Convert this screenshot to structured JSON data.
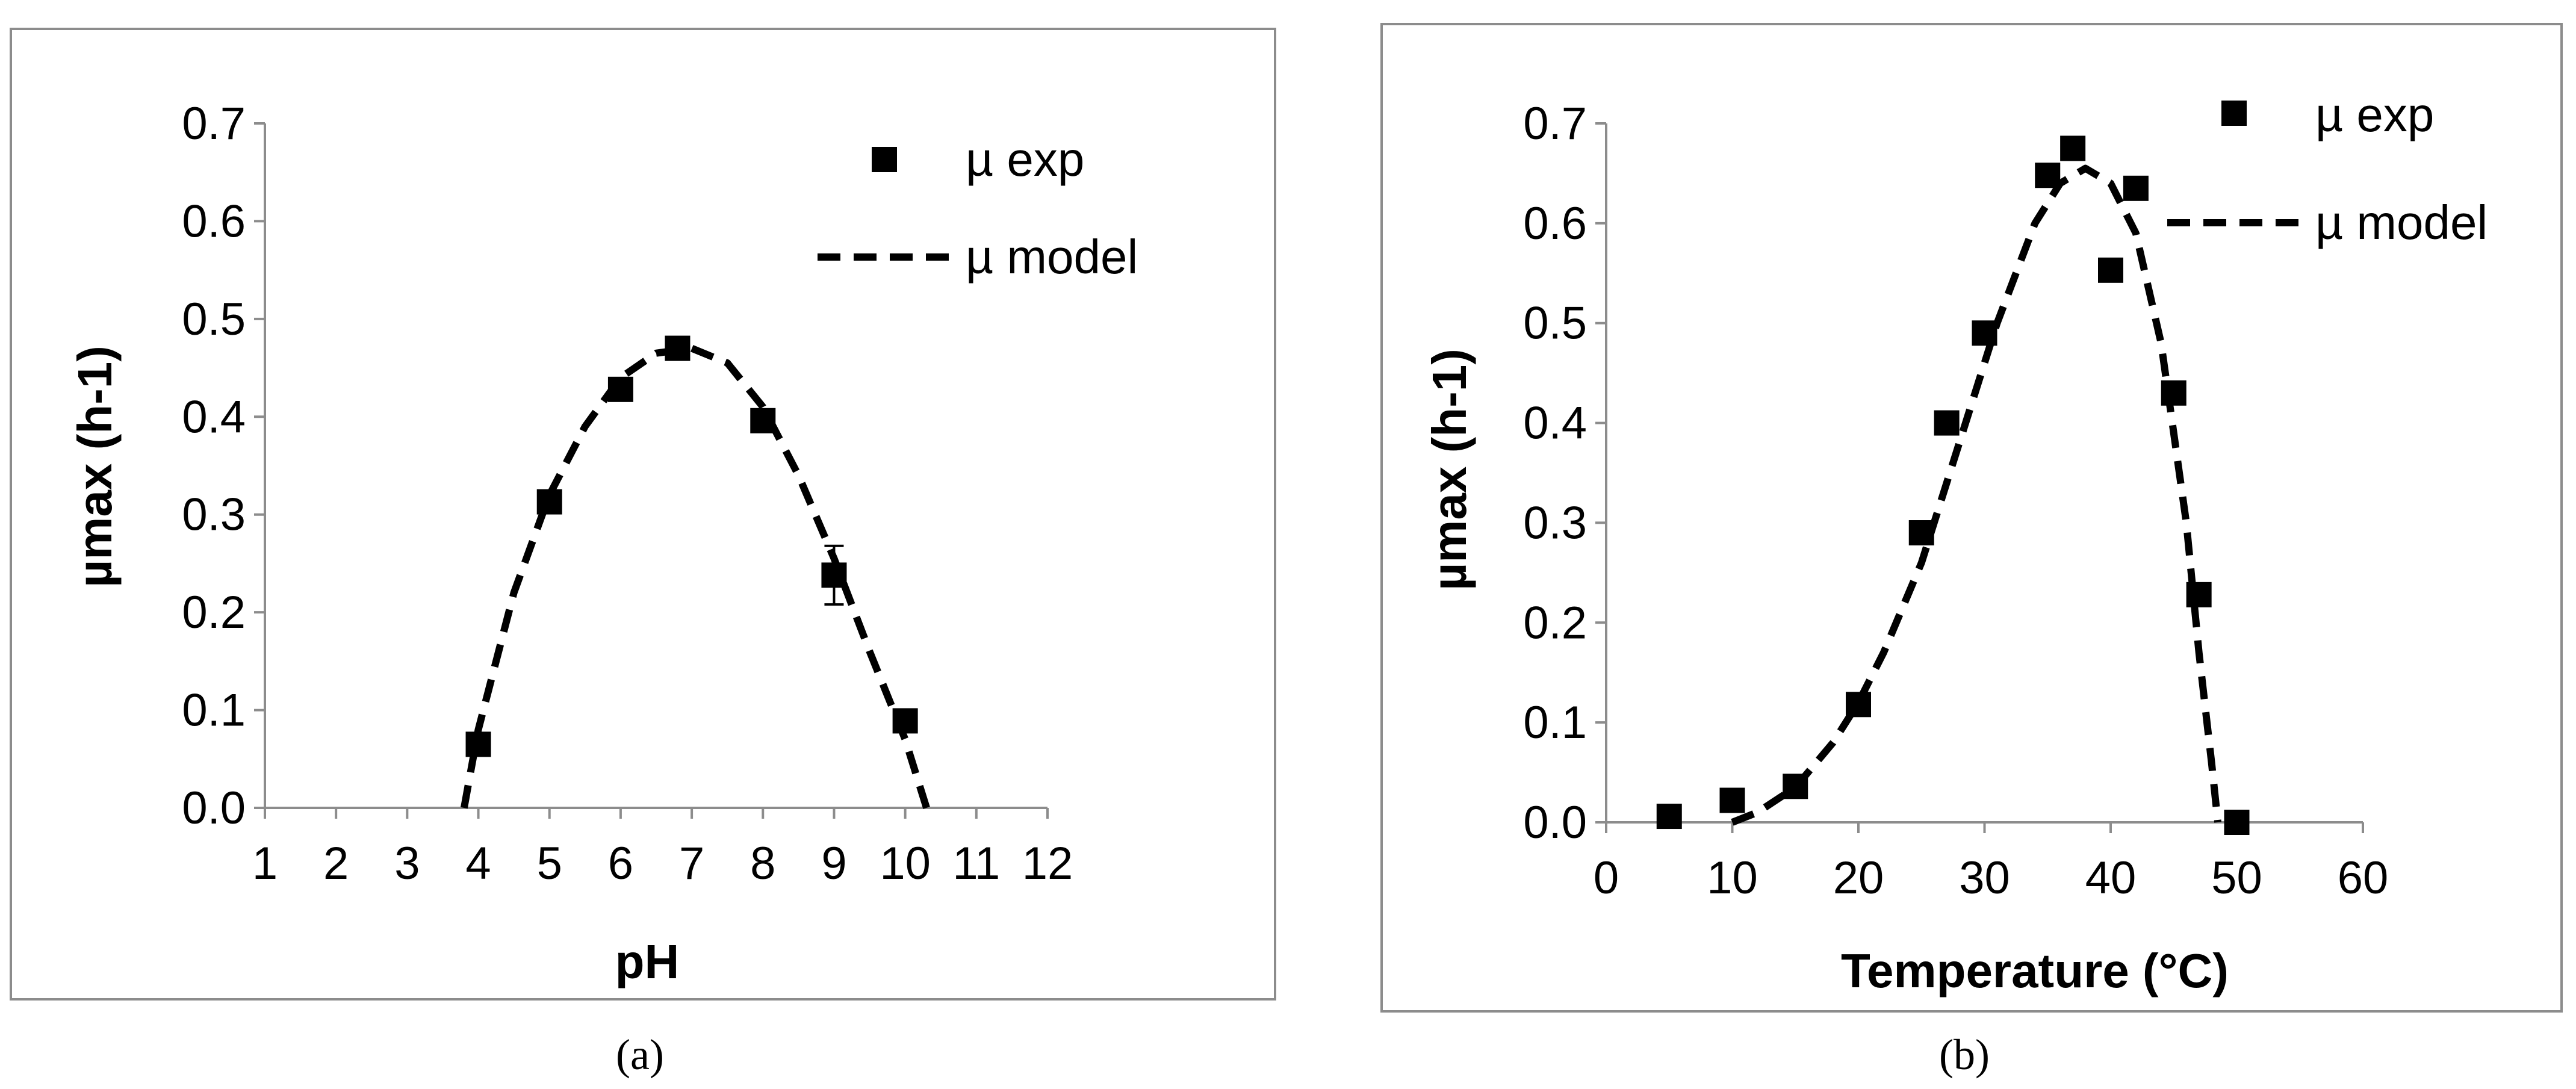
{
  "chart_data": [
    {
      "type": "scatter",
      "caption": "(a)",
      "xlabel": "pH",
      "ylabel": "µmax (h-1)",
      "xlim": [
        1,
        12
      ],
      "ylim": [
        0,
        0.7
      ],
      "x_ticks": [
        "1",
        "2",
        "3",
        "4",
        "5",
        "6",
        "7",
        "8",
        "9",
        "10",
        "11",
        "12"
      ],
      "y_ticks": [
        "0.0",
        "0.1",
        "0.2",
        "0.3",
        "0.4",
        "0.5",
        "0.6",
        "0.7"
      ],
      "grid": false,
      "legend": "top-right",
      "series": [
        {
          "name": "µ exp",
          "kind": "markers",
          "marker": "square",
          "points": [
            {
              "x": 4,
              "y": 0.065
            },
            {
              "x": 5,
              "y": 0.313,
              "err": 0.01
            },
            {
              "x": 6,
              "y": 0.428,
              "err": 0.008
            },
            {
              "x": 6.8,
              "y": 0.47
            },
            {
              "x": 8,
              "y": 0.396
            },
            {
              "x": 9,
              "y": 0.238,
              "err": 0.03
            },
            {
              "x": 10,
              "y": 0.089
            }
          ]
        },
        {
          "name": "µ model",
          "kind": "dashed-line",
          "points": [
            {
              "x": 3.8,
              "y": 0.0
            },
            {
              "x": 4.0,
              "y": 0.08
            },
            {
              "x": 4.5,
              "y": 0.22
            },
            {
              "x": 5.0,
              "y": 0.32
            },
            {
              "x": 5.5,
              "y": 0.39
            },
            {
              "x": 6.0,
              "y": 0.44
            },
            {
              "x": 6.5,
              "y": 0.465
            },
            {
              "x": 7.0,
              "y": 0.47
            },
            {
              "x": 7.5,
              "y": 0.455
            },
            {
              "x": 8.0,
              "y": 0.41
            },
            {
              "x": 8.5,
              "y": 0.34
            },
            {
              "x": 9.0,
              "y": 0.255
            },
            {
              "x": 9.5,
              "y": 0.16
            },
            {
              "x": 10.0,
              "y": 0.07
            },
            {
              "x": 10.3,
              "y": 0.0
            }
          ]
        }
      ]
    },
    {
      "type": "scatter",
      "caption": "(b)",
      "xlabel": "Temperature (°C)",
      "ylabel": "µmax (h-1)",
      "xlim": [
        0,
        60
      ],
      "ylim": [
        0,
        0.7
      ],
      "x_ticks": [
        "0",
        "10",
        "20",
        "30",
        "40",
        "50",
        "60"
      ],
      "y_ticks": [
        "0.0",
        "0.1",
        "0.2",
        "0.3",
        "0.4",
        "0.5",
        "0.6",
        "0.7"
      ],
      "grid": false,
      "legend": "top-right",
      "series": [
        {
          "name": "µ exp",
          "kind": "markers",
          "marker": "square",
          "points": [
            {
              "x": 5,
              "y": 0.006
            },
            {
              "x": 10,
              "y": 0.022
            },
            {
              "x": 15,
              "y": 0.036
            },
            {
              "x": 20,
              "y": 0.118
            },
            {
              "x": 25,
              "y": 0.29
            },
            {
              "x": 27,
              "y": 0.4
            },
            {
              "x": 30,
              "y": 0.49
            },
            {
              "x": 35,
              "y": 0.648
            },
            {
              "x": 37,
              "y": 0.675
            },
            {
              "x": 40,
              "y": 0.553
            },
            {
              "x": 42,
              "y": 0.635
            },
            {
              "x": 45,
              "y": 0.43
            },
            {
              "x": 47,
              "y": 0.228
            },
            {
              "x": 50,
              "y": 0.0
            }
          ]
        },
        {
          "name": "µ model",
          "kind": "dashed-line",
          "points": [
            {
              "x": 10,
              "y": 0.0
            },
            {
              "x": 12,
              "y": 0.01
            },
            {
              "x": 15,
              "y": 0.035
            },
            {
              "x": 18,
              "y": 0.08
            },
            {
              "x": 20,
              "y": 0.12
            },
            {
              "x": 22,
              "y": 0.17
            },
            {
              "x": 25,
              "y": 0.26
            },
            {
              "x": 28,
              "y": 0.38
            },
            {
              "x": 31,
              "y": 0.5
            },
            {
              "x": 34,
              "y": 0.6
            },
            {
              "x": 36,
              "y": 0.64
            },
            {
              "x": 38,
              "y": 0.655
            },
            {
              "x": 40,
              "y": 0.64
            },
            {
              "x": 42,
              "y": 0.59
            },
            {
              "x": 44,
              "y": 0.48
            },
            {
              "x": 46,
              "y": 0.3
            },
            {
              "x": 47,
              "y": 0.17
            },
            {
              "x": 48,
              "y": 0.06
            },
            {
              "x": 48.5,
              "y": 0.0
            }
          ]
        }
      ]
    }
  ]
}
